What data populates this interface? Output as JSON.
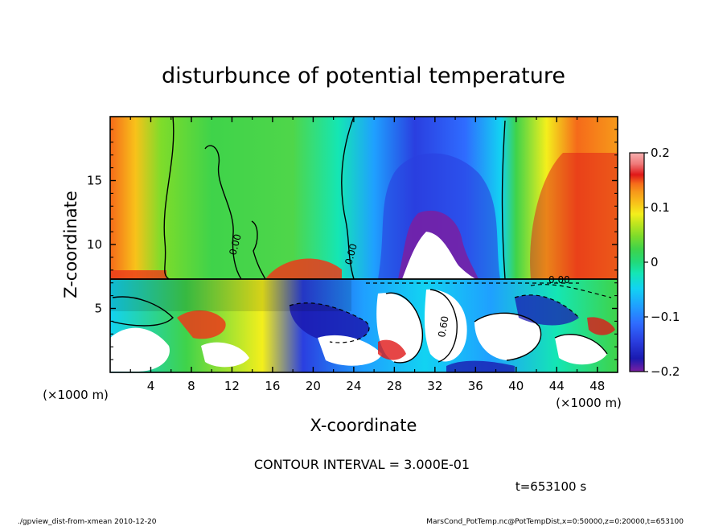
{
  "chart_data": {
    "type": "heatmap",
    "title": "disturbunce of potential temperature",
    "xlabel": "X-coordinate",
    "ylabel": "Z-coordinate",
    "x_unit": "(×1000 m)",
    "y_unit": "(×1000 m)",
    "xlim": [
      0,
      50
    ],
    "ylim": [
      0,
      20
    ],
    "x_ticks": [
      4,
      8,
      12,
      16,
      20,
      24,
      28,
      32,
      36,
      40,
      44,
      48
    ],
    "y_ticks": [
      5,
      10,
      15
    ],
    "colorbar": {
      "range": [
        -0.2,
        0.2
      ],
      "tick_values": [
        0.2,
        0.1,
        0,
        -0.1,
        -0.2
      ],
      "tick_labels": [
        "0.2",
        "0.1",
        "0",
        "−0.1",
        "−0.2"
      ],
      "colors": [
        "#7a1fa2",
        "#1a1ab0",
        "#2a3fe0",
        "#2f6cff",
        "#1fa0ff",
        "#12d3f2",
        "#14e6b4",
        "#22d97a",
        "#3fd34a",
        "#7fdc2a",
        "#c4e61e",
        "#f4ef1c",
        "#f8c21a",
        "#f79a1a",
        "#f56a1a",
        "#ec3a1a",
        "#e01818",
        "#f07a7a",
        "#f6b0b0"
      ]
    },
    "contour_labels": [
      "0.00",
      "0.00",
      "0.00",
      "0.60"
    ],
    "contour_interval_text": "CONTOUR INTERVAL = 3.000E-01",
    "time_text": "t=653100 s",
    "footer_left": "./gpview_dist-from-xmean  2010-12-20",
    "footer_right": "MarsCond_PotTemp.nc@PotTempDist,x=0:50000,z=0:20000,t=653100"
  }
}
